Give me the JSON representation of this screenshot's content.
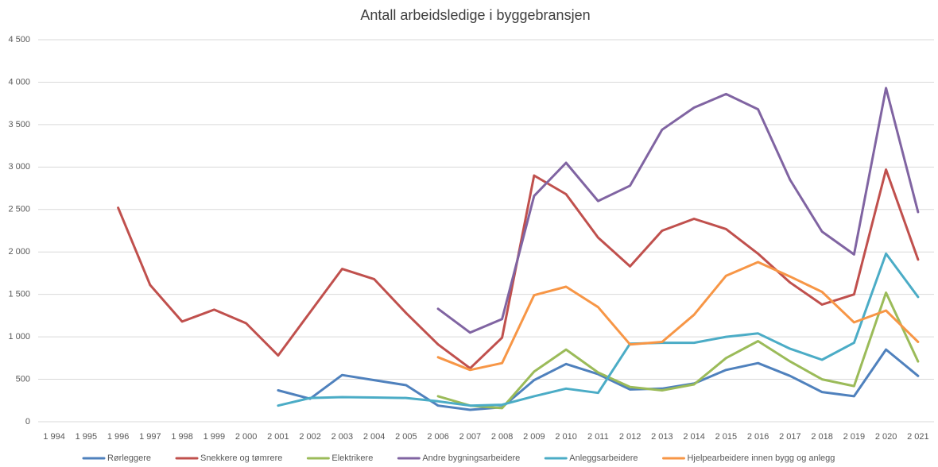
{
  "chart_data": {
    "type": "line",
    "title": "Antall arbeidsledige i byggebransjen",
    "categories": [
      "1 994",
      "1 995",
      "1 996",
      "1 997",
      "1 998",
      "1 999",
      "2 000",
      "2 001",
      "2 002",
      "2 003",
      "2 004",
      "2 005",
      "2 006",
      "2 007",
      "2 008",
      "2 009",
      "2 010",
      "2 011",
      "2 012",
      "2 013",
      "2 014",
      "2 015",
      "2 016",
      "2 017",
      "2 018",
      "2 019",
      "2 020",
      "2 021"
    ],
    "ylim": [
      0,
      4500
    ],
    "yticks": [
      0,
      {
        "value": 500,
        "label": "500"
      },
      {
        "value": 1000,
        "label": "1 000"
      },
      {
        "value": 1500,
        "label": "1 500"
      },
      {
        "value": 2000,
        "label": "2 000"
      },
      {
        "value": 2500,
        "label": "2 500"
      },
      {
        "value": 3000,
        "label": "3 000"
      },
      {
        "value": 3500,
        "label": "3 500"
      },
      {
        "value": 4000,
        "label": "4 000"
      },
      {
        "value": 4500,
        "label": "4 500"
      }
    ],
    "grid": true,
    "legend": "bottom",
    "series": [
      {
        "name": "Rørleggere",
        "color": "#4f81bd",
        "values": [
          null,
          null,
          null,
          null,
          null,
          null,
          null,
          370,
          270,
          550,
          490,
          430,
          190,
          140,
          170,
          490,
          680,
          560,
          380,
          390,
          450,
          610,
          690,
          540,
          350,
          300,
          850,
          540
        ]
      },
      {
        "name": "Snekkere og tømrere",
        "color": "#c0504d",
        "values": [
          null,
          null,
          2520,
          1610,
          1180,
          1320,
          1160,
          780,
          1290,
          1800,
          1680,
          1280,
          910,
          630,
          990,
          2900,
          2680,
          2170,
          1830,
          2250,
          2390,
          2270,
          1980,
          1640,
          1380,
          1500,
          2970,
          1910
        ]
      },
      {
        "name": "Elektrikere",
        "color": "#9bbb59",
        "values": [
          null,
          null,
          null,
          null,
          null,
          null,
          null,
          null,
          null,
          null,
          null,
          null,
          300,
          190,
          160,
          590,
          850,
          580,
          410,
          370,
          440,
          750,
          950,
          710,
          500,
          420,
          1520,
          710
        ]
      },
      {
        "name": "Andre bygningsarbeidere",
        "color": "#8064a2",
        "values": [
          null,
          null,
          null,
          null,
          null,
          null,
          null,
          null,
          null,
          null,
          null,
          null,
          1330,
          1050,
          1210,
          2660,
          3050,
          2600,
          2780,
          3440,
          3700,
          3860,
          3680,
          2850,
          2240,
          1970,
          3930,
          2470
        ]
      },
      {
        "name": "Anleggsarbeidere",
        "color": "#4bacc6",
        "values": [
          null,
          null,
          null,
          null,
          null,
          null,
          null,
          190,
          280,
          290,
          285,
          280,
          240,
          190,
          200,
          300,
          390,
          340,
          920,
          930,
          930,
          1000,
          1040,
          860,
          730,
          930,
          1980,
          1470
        ]
      },
      {
        "name": "Hjelpearbeidere innen bygg og anlegg",
        "color": "#f79646",
        "values": [
          null,
          null,
          null,
          null,
          null,
          null,
          null,
          null,
          null,
          null,
          null,
          null,
          760,
          610,
          690,
          1490,
          1590,
          1350,
          910,
          940,
          1260,
          1720,
          1880,
          1710,
          1530,
          1170,
          1310,
          940
        ]
      }
    ]
  }
}
